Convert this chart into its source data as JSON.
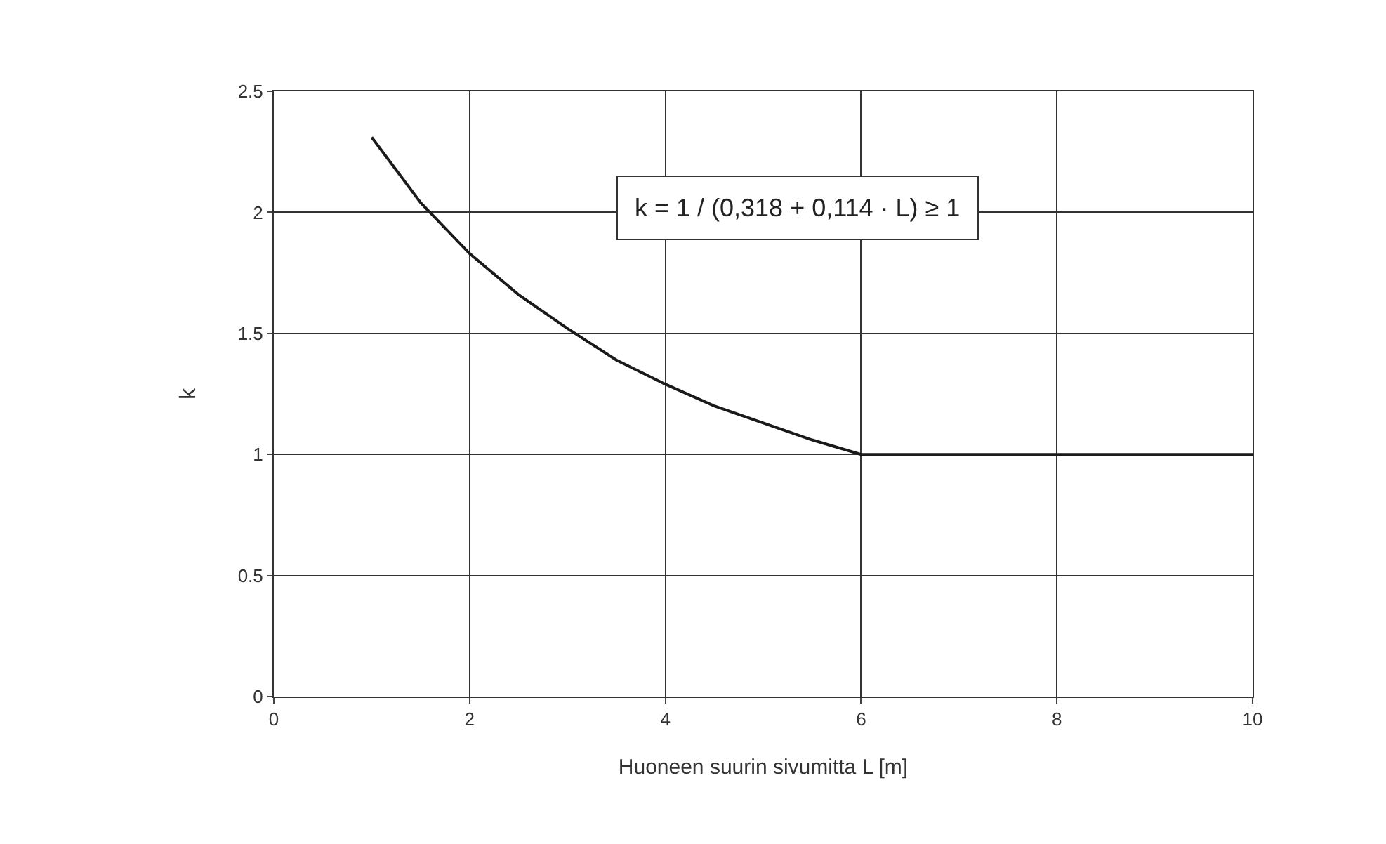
{
  "chart_data": {
    "type": "line",
    "xlabel": "Huoneen suurin sivumitta L [m]",
    "ylabel": "k",
    "x": [
      1,
      1.5,
      2,
      2.5,
      3,
      3.5,
      4,
      4.5,
      5,
      5.5,
      6,
      10
    ],
    "series": [
      {
        "color": "#1a1a1a",
        "values": [
          2.31,
          2.04,
          1.83,
          1.66,
          1.52,
          1.39,
          1.29,
          1.2,
          1.13,
          1.06,
          1,
          1
        ]
      }
    ],
    "xlim": [
      0,
      10
    ],
    "xticks": [
      0,
      2,
      4,
      6,
      8,
      10
    ],
    "ylim": [
      0,
      2.5
    ],
    "yticks": [
      0,
      0.5,
      1,
      1.5,
      2,
      2.5
    ],
    "grid": true,
    "marker": "none",
    "line_style": "solid",
    "annotations": [
      "k = 1 / (0,318 + 0,114 · L) ≥ 1"
    ]
  }
}
